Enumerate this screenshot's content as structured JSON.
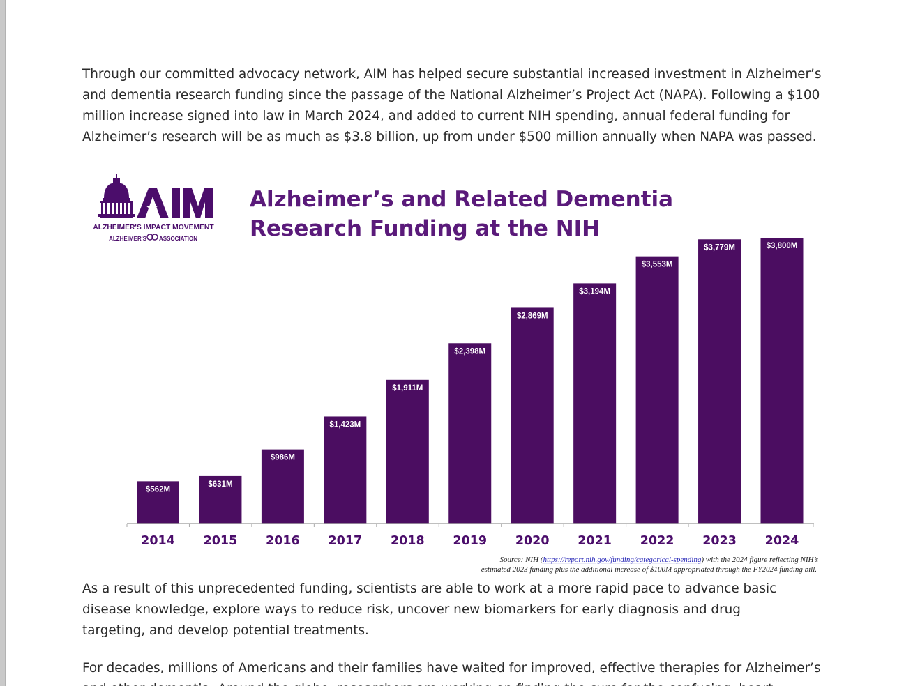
{
  "paragraphs": {
    "p1": "Through our committed advocacy network, AIM has helped secure substantial increased investment in Alzheimer’s and dementia research funding since the passage of the National Alzheimer’s Project Act (NAPA). Following a $100 million increase signed into law in March 2024, and added to current NIH spending, annual federal funding for Alzheimer’s research will be as much as $3.8 billion, up from under $500 million annually when NAPA was passed.",
    "p2": "As a result of this unprecedented funding, scientists are able to work at a more rapid pace to advance basic disease knowledge, explore ways to reduce risk, uncover new biomarkers for early diagnosis and drug targeting, and develop potential treatments.",
    "p3": "For decades, millions of Americans and their families have waited for improved, effective therapies for Alzheimer’s and other dementia. Around the globe, researchers are working on finding the cure for the confusing, heart-breaking conditions. And these"
  },
  "logo": {
    "name": "AIM",
    "line1": "ALZHEIMER'S IMPACT MOVEMENT",
    "line2a": "ALZHEIMER'S",
    "line2b": "ASSOCIATION"
  },
  "colors": {
    "bar": "#4b0d61",
    "title": "#5a1a7a",
    "axis": "#aaaaaa"
  },
  "chart_data": {
    "type": "bar",
    "title_line1": "Alzheimer’s and Related Dementia",
    "title_line2": "Research Funding at the NIH",
    "categories": [
      "2014",
      "2015",
      "2016",
      "2017",
      "2018",
      "2019",
      "2020",
      "2021",
      "2022",
      "2023",
      "2024"
    ],
    "values": [
      562,
      631,
      986,
      1423,
      1911,
      2398,
      2869,
      3194,
      3553,
      3779,
      3800
    ],
    "value_labels": [
      "$562M",
      "$631M",
      "$986M",
      "$1,423M",
      "$1,911M",
      "$2,398M",
      "$2,869M",
      "$3,194M",
      "$3,553M",
      "$3,779M",
      "$3,800M"
    ],
    "unit": "$ millions",
    "ylim": [
      0,
      3800
    ],
    "xlabel": "",
    "ylabel": "",
    "source_prefix": "Source: NIH (",
    "source_link": "https://report.nih.gov/funding/categorical-spending",
    "source_suffix": ") with the 2024 figure reflecting NIH’s",
    "source_line2": "estimated 2023 funding plus the additional increase of $100M appropriated through the FY2024 funding bill."
  }
}
